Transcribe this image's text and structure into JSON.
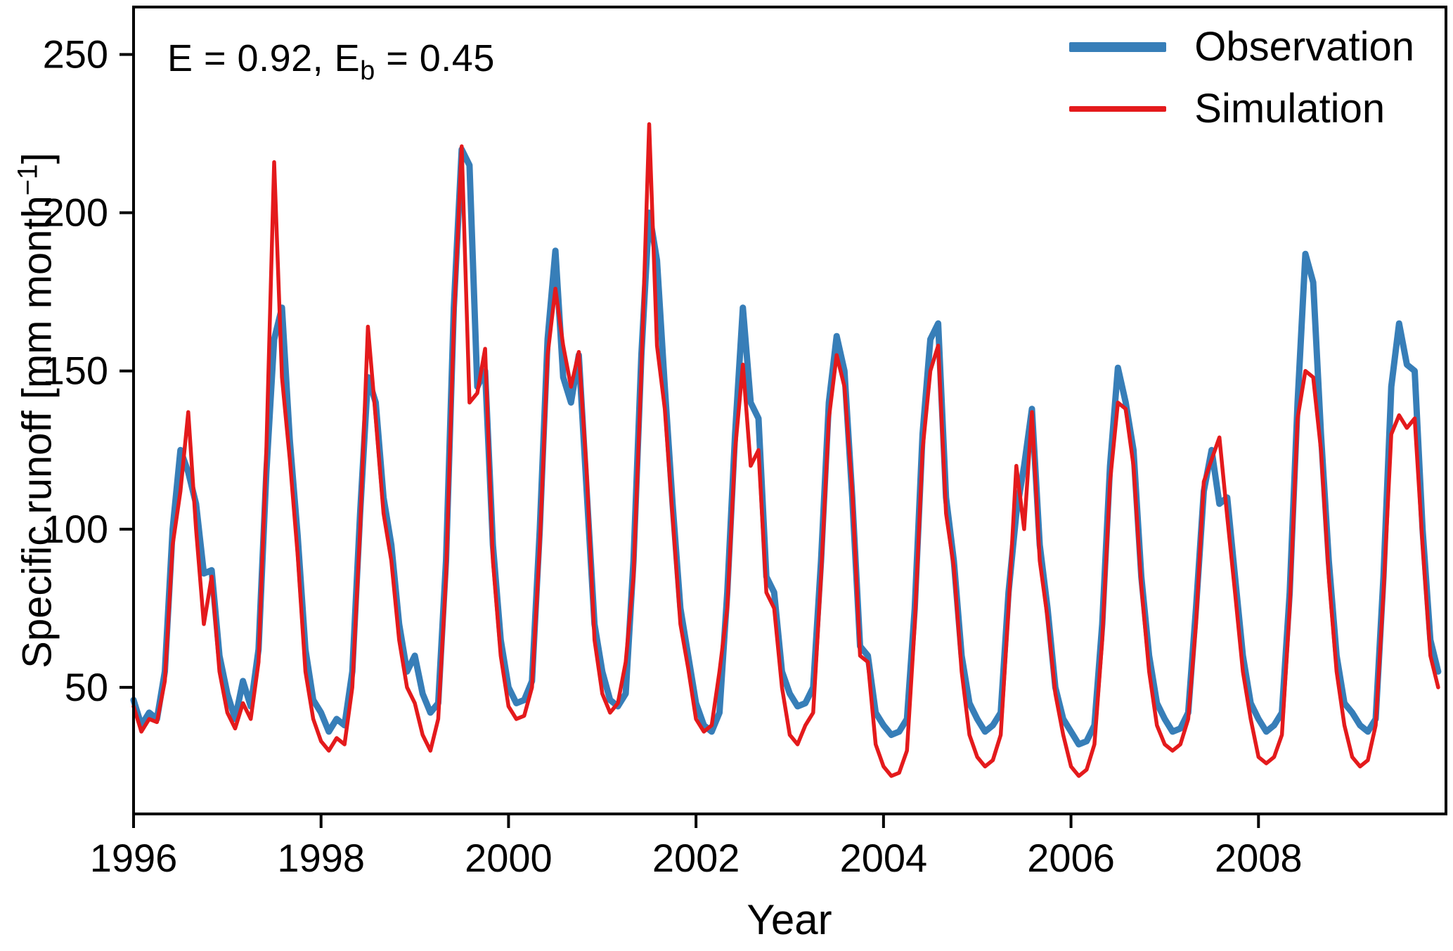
{
  "chart_data": {
    "type": "line",
    "title": "",
    "xlabel": "Year",
    "ylabel_parts": {
      "main": "Specific runoff [mm month",
      "sup": "−1",
      "end": "]"
    },
    "annotation": {
      "prefix": "E = 0.92, E",
      "sub": "b",
      "suffix": " = 0.45"
    },
    "xlim": [
      1996,
      2010
    ],
    "ylim": [
      10,
      265
    ],
    "xticks": [
      1996,
      1998,
      2000,
      2002,
      2004,
      2006,
      2008
    ],
    "yticks": [
      50,
      100,
      150,
      200,
      250
    ],
    "grid": false,
    "legend_position": "top-right",
    "x_start": 1996,
    "points_per_year": 12,
    "x_unit": "monthly",
    "axis_color": "#000000",
    "series": [
      {
        "name": "Observation",
        "color": "#377eb8",
        "width": 9,
        "values": [
          46,
          38,
          42,
          40,
          55,
          100,
          125,
          118,
          108,
          86,
          87,
          60,
          48,
          40,
          52,
          44,
          62,
          118,
          160,
          170,
          128,
          98,
          62,
          46,
          42,
          36,
          40,
          38,
          55,
          105,
          148,
          140,
          110,
          95,
          70,
          55,
          60,
          48,
          42,
          45,
          90,
          170,
          220,
          215,
          145,
          150,
          95,
          65,
          50,
          45,
          46,
          52,
          100,
          160,
          188,
          148,
          140,
          155,
          112,
          70,
          55,
          46,
          44,
          48,
          90,
          155,
          200,
          185,
          145,
          108,
          75,
          60,
          45,
          38,
          36,
          42,
          80,
          130,
          170,
          140,
          135,
          85,
          80,
          55,
          48,
          44,
          45,
          50,
          90,
          140,
          161,
          150,
          110,
          63,
          60,
          42,
          38,
          35,
          36,
          40,
          75,
          130,
          160,
          165,
          110,
          90,
          60,
          45,
          40,
          36,
          38,
          42,
          80,
          105,
          120,
          138,
          95,
          75,
          50,
          40,
          36,
          32,
          33,
          38,
          70,
          120,
          151,
          140,
          125,
          85,
          60,
          45,
          40,
          36,
          37,
          42,
          75,
          112,
          125,
          108,
          110,
          85,
          60,
          45,
          40,
          36,
          38,
          42,
          80,
          140,
          187,
          178,
          130,
          90,
          60,
          45,
          42,
          38,
          36,
          40,
          85,
          145,
          165,
          152,
          150,
          100,
          65,
          55
        ]
      },
      {
        "name": "Simulation",
        "color": "#e41a1c",
        "width": 5.5,
        "values": [
          44,
          36,
          40,
          39,
          52,
          95,
          112,
          137,
          100,
          70,
          85,
          55,
          42,
          37,
          45,
          40,
          58,
          125,
          216,
          148,
          122,
          92,
          55,
          40,
          33,
          30,
          34,
          32,
          50,
          100,
          164,
          135,
          105,
          90,
          65,
          50,
          45,
          35,
          30,
          40,
          85,
          165,
          221,
          140,
          143,
          157,
          90,
          60,
          44,
          40,
          41,
          50,
          95,
          155,
          176,
          158,
          145,
          156,
          118,
          65,
          48,
          42,
          45,
          58,
          85,
          150,
          228,
          158,
          138,
          104,
          70,
          56,
          40,
          36,
          38,
          55,
          75,
          125,
          152,
          120,
          125,
          80,
          75,
          50,
          35,
          32,
          38,
          42,
          85,
          135,
          155,
          145,
          112,
          60,
          58,
          32,
          25,
          22,
          23,
          30,
          70,
          125,
          150,
          158,
          105,
          88,
          55,
          35,
          28,
          25,
          27,
          35,
          75,
          120,
          100,
          137,
          90,
          72,
          48,
          35,
          25,
          22,
          24,
          32,
          65,
          115,
          140,
          138,
          120,
          82,
          55,
          38,
          32,
          30,
          32,
          40,
          70,
          115,
          122,
          129,
          104,
          80,
          55,
          40,
          28,
          26,
          28,
          35,
          75,
          135,
          150,
          148,
          125,
          85,
          55,
          38,
          28,
          25,
          27,
          38,
          80,
          130,
          136,
          132,
          135,
          95,
          60,
          50
        ]
      }
    ]
  }
}
